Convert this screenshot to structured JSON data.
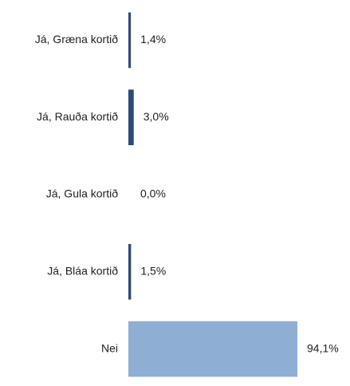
{
  "chart_data": {
    "type": "barh",
    "categories": [
      "Já, Græna kortið",
      "Já, Rauða kortið",
      "Já, Gula kortið",
      "Já, Bláa kortið",
      "Nei"
    ],
    "values": [
      1.4,
      3.0,
      0.0,
      1.5,
      94.1
    ],
    "value_labels": [
      "1,4%",
      "3,0%",
      "0,0%",
      "1,5%",
      "94,1%"
    ],
    "colors": [
      "#2e4a7a",
      "#2e4a7a",
      "#2e4a7a",
      "#2e4a7a",
      "#8eaed4"
    ]
  }
}
